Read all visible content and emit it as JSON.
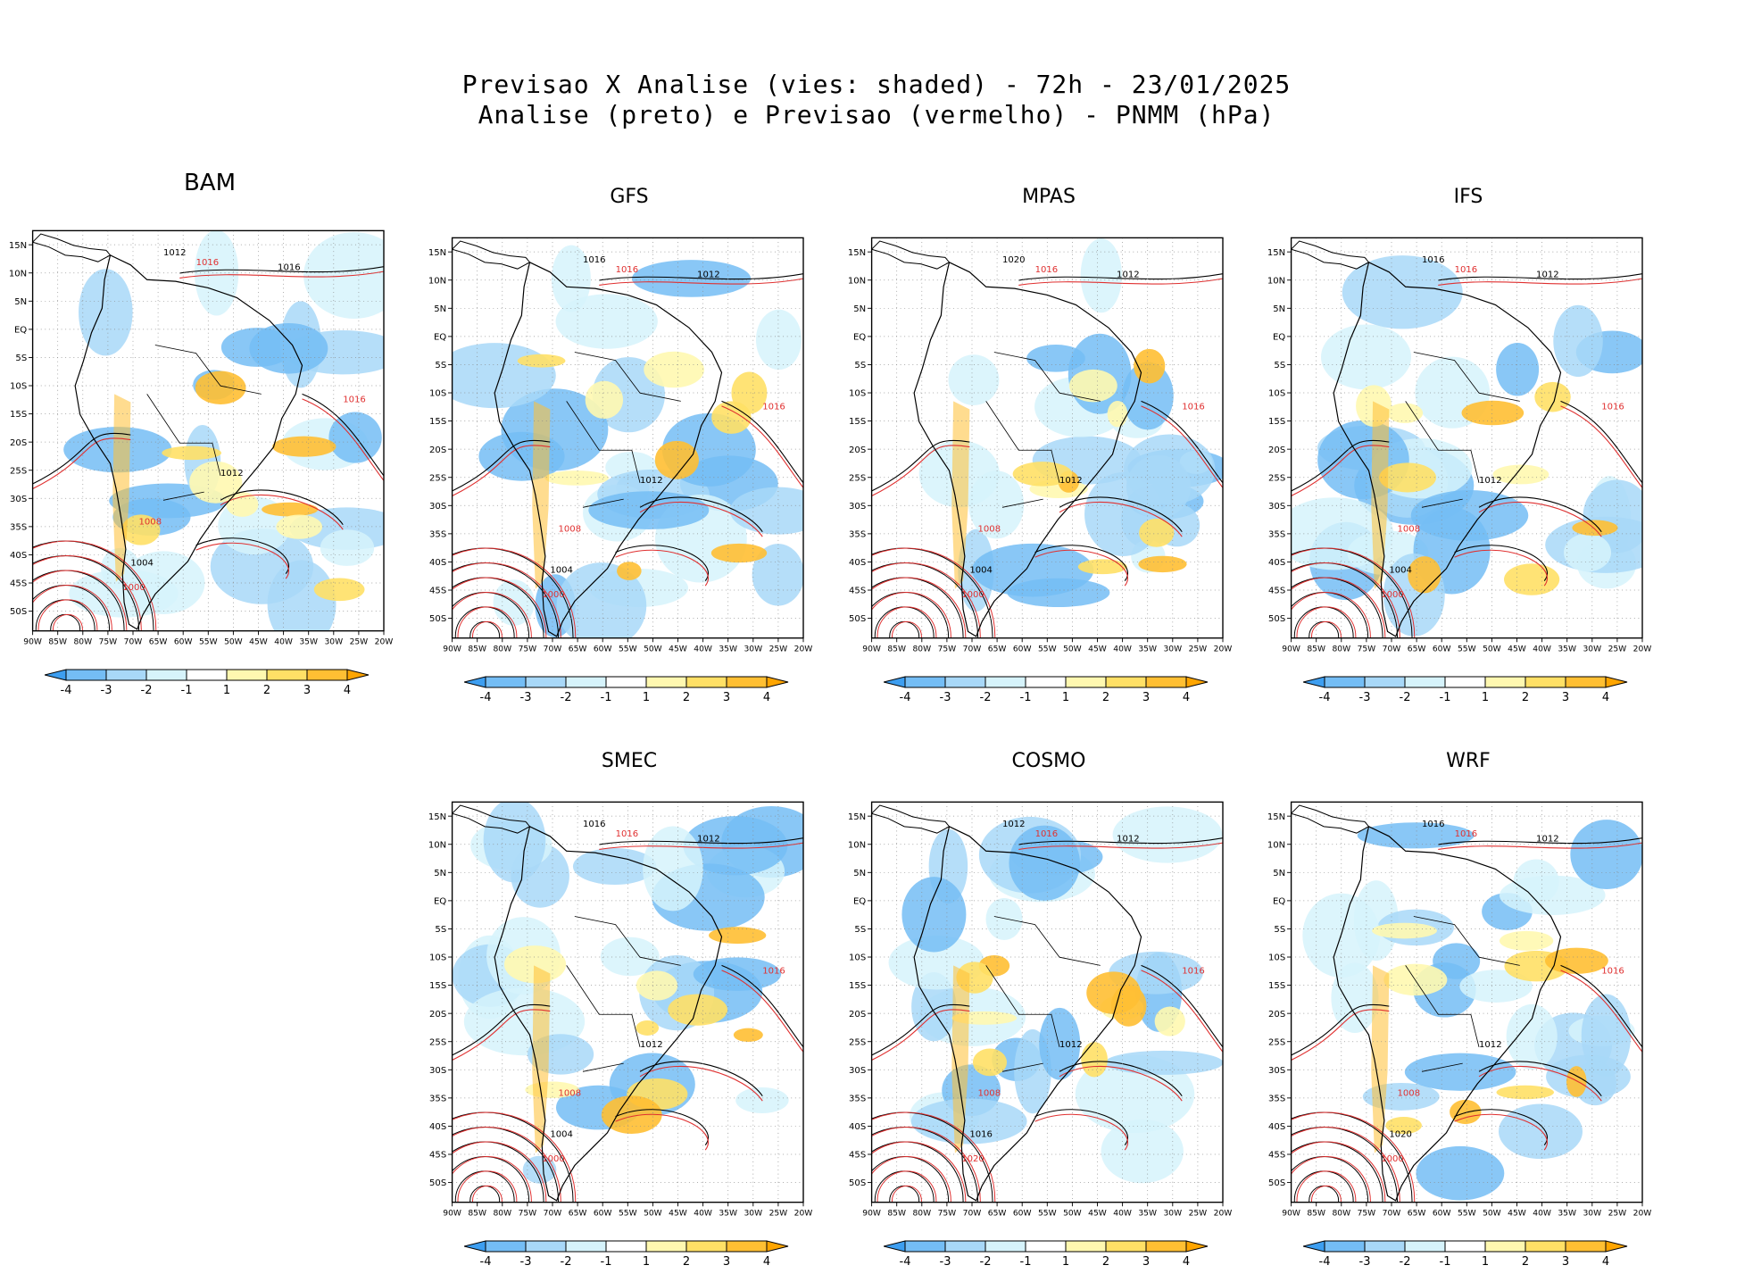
{
  "title": {
    "line1": "Previsao X Analise (vies: shaded) - 72h - 23/01/2025",
    "line2": "Analise (preto) e Previsao (vermelho) - PNMM (hPa)"
  },
  "axes": {
    "lat_labels": [
      "15N",
      "10N",
      "5N",
      "EQ",
      "5S",
      "10S",
      "15S",
      "20S",
      "25S",
      "30S",
      "35S",
      "40S",
      "45S",
      "50S"
    ],
    "lon_labels": [
      "90W",
      "85W",
      "80W",
      "75W",
      "70W",
      "65W",
      "60W",
      "55W",
      "50W",
      "45W",
      "40W",
      "35W",
      "30W",
      "25W",
      "20W"
    ]
  },
  "colorbar": {
    "labels": [
      "-4",
      "-3",
      "-2",
      "-1",
      "1",
      "2",
      "3",
      "4"
    ],
    "colors": [
      "#3d9ef0",
      "#74bdf5",
      "#a8d8f8",
      "#d6f3fb",
      "#ffffff",
      "#fff8b0",
      "#ffe066",
      "#ffbf33",
      "#ffa500"
    ]
  },
  "colors": {
    "analysis_contour": "#000000",
    "forecast_contour": "#e03030",
    "negative_bias": "#74bdf5",
    "positive_bias": "#ffbf33"
  },
  "panels": [
    {
      "id": "bam",
      "title": "BAM",
      "labels": [
        "1012",
        "1016",
        "1016",
        "1016",
        "1012",
        "1008",
        "1004",
        "1000"
      ]
    },
    {
      "id": "gfs",
      "title": "GFS",
      "labels": [
        "1016",
        "1016",
        "1012",
        "1016",
        "1012",
        "1008",
        "1004",
        "1000"
      ]
    },
    {
      "id": "mpas",
      "title": "MPAS",
      "labels": [
        "1020",
        "1016",
        "1012",
        "1016",
        "1012",
        "1008",
        "1004",
        "1000"
      ]
    },
    {
      "id": "ifs",
      "title": "IFS",
      "labels": [
        "1016",
        "1016",
        "1012",
        "1016",
        "1012",
        "1008",
        "1004",
        "1000"
      ]
    },
    {
      "id": "smec",
      "title": "SMEC",
      "labels": [
        "1016",
        "1016",
        "1012",
        "1016",
        "1012",
        "1008",
        "1004",
        "1000"
      ]
    },
    {
      "id": "cosmo",
      "title": "COSMO",
      "labels": [
        "1012",
        "1016",
        "1012",
        "1016",
        "1012",
        "1008",
        "1016",
        "1020"
      ]
    },
    {
      "id": "wrf",
      "title": "WRF",
      "labels": [
        "1016",
        "1016",
        "1012",
        "1016",
        "1012",
        "1008",
        "1020",
        "1000"
      ]
    }
  ]
}
